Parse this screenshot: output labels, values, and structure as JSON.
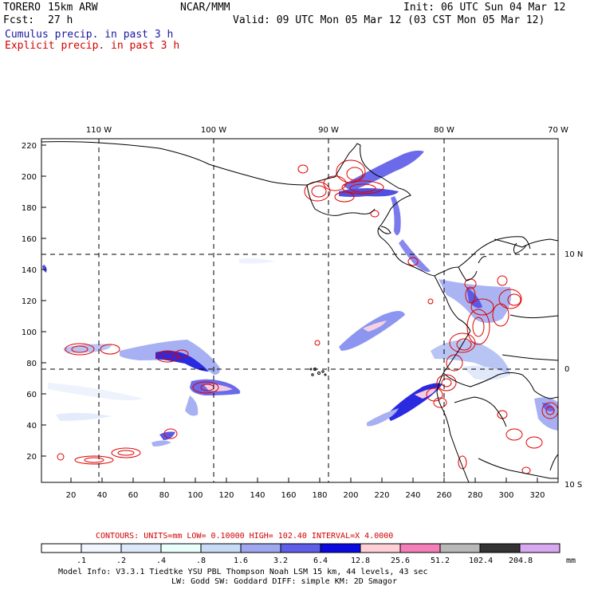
{
  "header": {
    "model": "TORERO",
    "resolution": "15km ARW",
    "org": "NCAR/MMM",
    "init": "Init: 06 UTC Sun 04 Mar 12",
    "fcst_label": "Fcst:",
    "fcst_value": "27 h",
    "valid": "Valid: 09 UTC Mon 05 Mar 12 (03 CST Mon 05 Mar 12)",
    "field1": "Cumulus precip. in past 3 h",
    "field2": "Explicit precip. in past 3 h"
  },
  "colors": {
    "field1": "#1a1aa0",
    "field2": "#d40000",
    "coast": "#000000",
    "contour": "#e00000"
  },
  "map": {
    "lon_labels": [
      "110 W",
      "100 W",
      "90 W",
      "80 W",
      "70 W"
    ],
    "lat_labels": [
      "10 N",
      "0",
      "10 S"
    ],
    "y_ticks": [
      "220",
      "200",
      "180",
      "160",
      "140",
      "120",
      "100",
      "80",
      "60",
      "40",
      "20"
    ],
    "x_ticks": [
      "20",
      "40",
      "60",
      "80",
      "100",
      "120",
      "140",
      "160",
      "180",
      "200",
      "220",
      "240",
      "260",
      "280",
      "300",
      "320"
    ]
  },
  "legend": {
    "contours_text": "CONTOURS:  UNITS=mm  LOW= 0.10000      HIGH=  102.40     INTERVAL=X  4.0000",
    "thresholds": [
      ".1",
      ".2",
      ".4",
      ".8",
      "1.6",
      "3.2",
      "6.4",
      "12.8",
      "25.6",
      "51.2",
      "102.4",
      "204.8"
    ],
    "units": "mm",
    "colors": [
      "#ffffff",
      "#f2f6ff",
      "#dde8fb",
      "#e8fffb",
      "#c6dcf5",
      "#9fa7f0",
      "#5e5ee8",
      "#0a0ae0",
      "#ffcfd6",
      "#f47eb8",
      "#b8b8b8",
      "#333333",
      "#d8a8f0"
    ]
  },
  "footer": {
    "line1": "Model Info: V3.3.1    Tiedtke YSU PBL  Thompson    Noah LSM  15 km,   44 levels,   43 sec",
    "line2": "LW: Godd SW: Goddard DIFF: simple KM: 2D Smagor"
  }
}
